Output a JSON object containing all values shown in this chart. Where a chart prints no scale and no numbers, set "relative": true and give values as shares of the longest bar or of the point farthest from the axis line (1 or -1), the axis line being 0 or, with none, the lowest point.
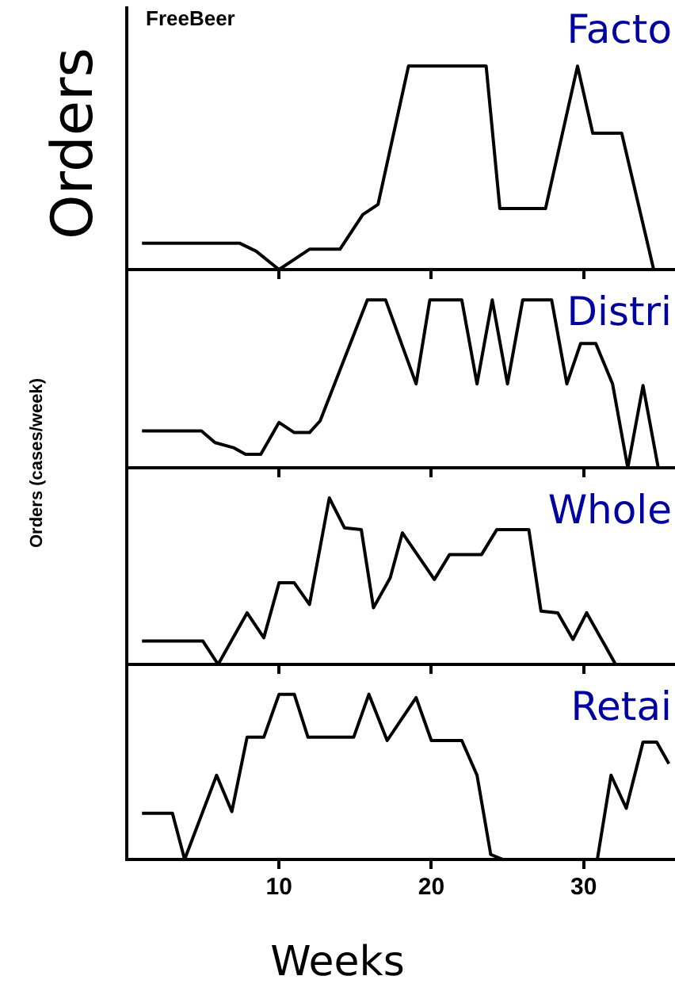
{
  "chart_data": [
    {
      "type": "line",
      "title": "Facto",
      "ylabel": "Orders",
      "annotations": [
        "FreeBeer"
      ],
      "relative": true,
      "color": "#000000",
      "xlim": [
        0,
        36
      ],
      "xticks": [
        10,
        20,
        30
      ],
      "tick_labels": false,
      "x": [
        1,
        7.4,
        8.5,
        10,
        12,
        14,
        15.5,
        16.5,
        18.5,
        23.6,
        24.5,
        27.5,
        29.6,
        30.6,
        32.5,
        34.6
      ],
      "values": [
        0.13,
        0.13,
        0.09,
        0,
        0.1,
        0.1,
        0.27,
        0.32,
        1,
        1,
        0.3,
        0.3,
        1,
        0.67,
        0.67,
        0
      ]
    },
    {
      "type": "line",
      "title": "Distri",
      "ylabel": "Orders (cases/week)",
      "relative": true,
      "color": "#000000",
      "xlim": [
        0,
        36
      ],
      "xticks": [
        10,
        20,
        30
      ],
      "tick_labels": false,
      "x": [
        1,
        4.9,
        5.8,
        7,
        7.8,
        8.8,
        10,
        11,
        12,
        12.7,
        15.8,
        17,
        19,
        19.9,
        22,
        23,
        24,
        25,
        26,
        27.9,
        28.9,
        29.8,
        30.8,
        31.9,
        32.9,
        33.9,
        34.9
      ],
      "values": [
        0.22,
        0.22,
        0.15,
        0.12,
        0.08,
        0.08,
        0.27,
        0.21,
        0.21,
        0.28,
        1,
        1,
        0.5,
        1,
        1,
        0.5,
        1,
        0.5,
        1,
        1,
        0.5,
        0.74,
        0.74,
        0.5,
        0,
        0.49,
        0
      ]
    },
    {
      "type": "line",
      "title": "Whole",
      "relative": true,
      "color": "#000000",
      "xlim": [
        0,
        36
      ],
      "xticks": [
        10,
        20,
        30
      ],
      "tick_labels": false,
      "x": [
        1,
        5,
        6,
        7.9,
        9,
        10,
        11,
        12,
        13.3,
        14.3,
        15.4,
        16.2,
        17.3,
        18.1,
        20.2,
        21.2,
        23.3,
        24.3,
        26.4,
        27.2,
        28.3,
        29.3,
        30.2,
        32.1
      ],
      "values": [
        0.14,
        0.14,
        0,
        0.31,
        0.16,
        0.49,
        0.49,
        0.36,
        1,
        0.82,
        0.81,
        0.34,
        0.52,
        0.79,
        0.51,
        0.66,
        0.66,
        0.81,
        0.81,
        0.32,
        0.31,
        0.15,
        0.31,
        0
      ]
    },
    {
      "type": "line",
      "title": "Retai",
      "xlabel": "Weeks",
      "relative": true,
      "color": "#000000",
      "xlim": [
        0,
        36
      ],
      "xticks": [
        10,
        20,
        30
      ],
      "tick_labels": "x",
      "x": [
        1,
        3,
        3.8,
        5.9,
        6.9,
        7.9,
        9,
        10,
        11,
        11.9,
        14.9,
        15.9,
        17.1,
        19,
        20,
        22,
        23,
        23.9,
        24.7,
        30.9,
        31.8,
        32.8,
        33.9,
        34.8,
        35.6
      ],
      "values": [
        0.28,
        0.28,
        0,
        0.51,
        0.29,
        0.74,
        0.74,
        1,
        1,
        0.74,
        0.74,
        1,
        0.72,
        0.98,
        0.72,
        0.72,
        0.51,
        0.03,
        0,
        0,
        0.51,
        0.31,
        0.71,
        0.71,
        0.58
      ]
    }
  ]
}
